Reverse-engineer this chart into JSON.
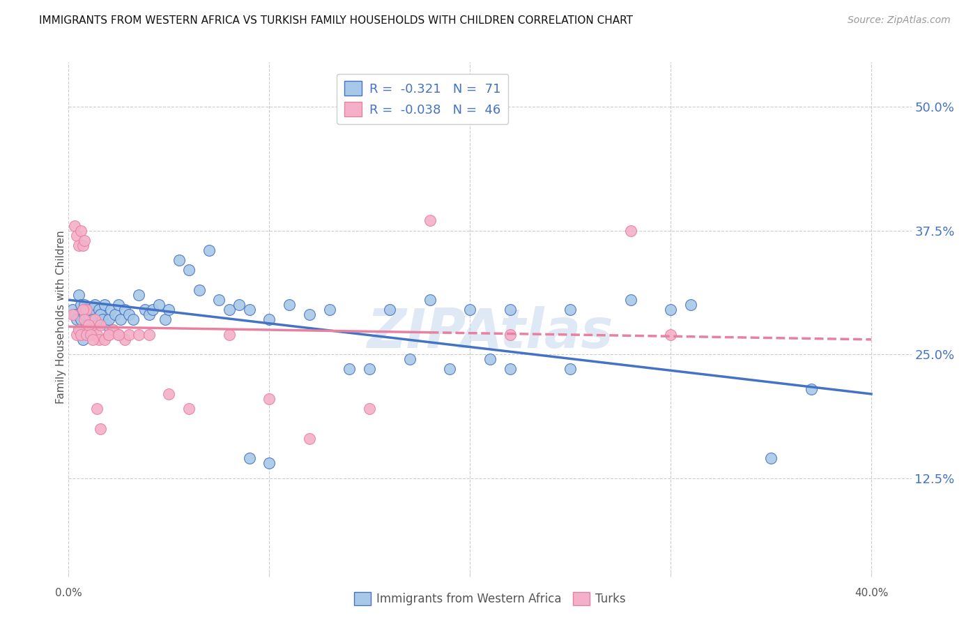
{
  "title": "IMMIGRANTS FROM WESTERN AFRICA VS TURKISH FAMILY HOUSEHOLDS WITH CHILDREN CORRELATION CHART",
  "source": "Source: ZipAtlas.com",
  "ylabel": "Family Households with Children",
  "yticks": [
    0.125,
    0.25,
    0.375,
    0.5
  ],
  "ytick_labels": [
    "12.5%",
    "25.0%",
    "37.5%",
    "50.0%"
  ],
  "xticks": [
    0.0,
    0.1,
    0.2,
    0.3,
    0.4
  ],
  "xlim": [
    0.0,
    0.42
  ],
  "ylim": [
    0.03,
    0.545
  ],
  "legend_label1": "R =  -0.321   N =  71",
  "legend_label2": "R =  -0.038   N =  46",
  "legend_bottom_label1": "Immigrants from Western Africa",
  "legend_bottom_label2": "Turks",
  "color_blue": "#a8c8e8",
  "color_pink": "#f4b0c8",
  "line_blue": "#4472c4",
  "line_pink": "#e880a0",
  "text_color_blue": "#4472c4",
  "text_color_dark": "#555555",
  "watermark": "ZIPAtlas",
  "blue_scatter_x": [
    0.002,
    0.003,
    0.004,
    0.005,
    0.005,
    0.006,
    0.006,
    0.007,
    0.007,
    0.008,
    0.008,
    0.009,
    0.009,
    0.01,
    0.01,
    0.011,
    0.012,
    0.013,
    0.014,
    0.015,
    0.016,
    0.017,
    0.018,
    0.019,
    0.02,
    0.021,
    0.022,
    0.023,
    0.025,
    0.026,
    0.028,
    0.03,
    0.032,
    0.035,
    0.038,
    0.04,
    0.042,
    0.045,
    0.048,
    0.05,
    0.055,
    0.06,
    0.065,
    0.07,
    0.075,
    0.08,
    0.085,
    0.09,
    0.1,
    0.11,
    0.12,
    0.13,
    0.14,
    0.15,
    0.16,
    0.18,
    0.2,
    0.22,
    0.25,
    0.28,
    0.22,
    0.25,
    0.09,
    0.1,
    0.3,
    0.31,
    0.35,
    0.17,
    0.19,
    0.21,
    0.37
  ],
  "blue_scatter_y": [
    0.295,
    0.29,
    0.285,
    0.31,
    0.275,
    0.3,
    0.285,
    0.295,
    0.265,
    0.29,
    0.3,
    0.28,
    0.295,
    0.275,
    0.29,
    0.295,
    0.285,
    0.3,
    0.28,
    0.295,
    0.29,
    0.285,
    0.3,
    0.28,
    0.285,
    0.295,
    0.275,
    0.29,
    0.3,
    0.285,
    0.295,
    0.29,
    0.285,
    0.31,
    0.295,
    0.29,
    0.295,
    0.3,
    0.285,
    0.295,
    0.345,
    0.335,
    0.315,
    0.355,
    0.305,
    0.295,
    0.3,
    0.295,
    0.285,
    0.3,
    0.29,
    0.295,
    0.235,
    0.235,
    0.295,
    0.305,
    0.295,
    0.295,
    0.295,
    0.305,
    0.235,
    0.235,
    0.145,
    0.14,
    0.295,
    0.3,
    0.145,
    0.245,
    0.235,
    0.245,
    0.215
  ],
  "pink_scatter_x": [
    0.002,
    0.003,
    0.004,
    0.005,
    0.006,
    0.007,
    0.008,
    0.009,
    0.01,
    0.011,
    0.012,
    0.013,
    0.014,
    0.015,
    0.016,
    0.018,
    0.02,
    0.022,
    0.025,
    0.028,
    0.03,
    0.035,
    0.04,
    0.05,
    0.06,
    0.08,
    0.1,
    0.12,
    0.15,
    0.18,
    0.22,
    0.28,
    0.3,
    0.004,
    0.005,
    0.006,
    0.007,
    0.008,
    0.009,
    0.01,
    0.011,
    0.012,
    0.014,
    0.016,
    0.02,
    0.025
  ],
  "pink_scatter_y": [
    0.29,
    0.38,
    0.37,
    0.36,
    0.375,
    0.36,
    0.365,
    0.295,
    0.275,
    0.27,
    0.275,
    0.285,
    0.27,
    0.265,
    0.28,
    0.265,
    0.27,
    0.275,
    0.27,
    0.265,
    0.27,
    0.27,
    0.27,
    0.21,
    0.195,
    0.27,
    0.205,
    0.165,
    0.195,
    0.385,
    0.27,
    0.375,
    0.27,
    0.27,
    0.275,
    0.27,
    0.295,
    0.285,
    0.27,
    0.28,
    0.27,
    0.265,
    0.195,
    0.175,
    0.27,
    0.27
  ],
  "blue_line_x": [
    0.0,
    0.4
  ],
  "blue_line_y": [
    0.305,
    0.21
  ],
  "pink_line_x": [
    0.0,
    0.4
  ],
  "pink_line_y": [
    0.278,
    0.265
  ],
  "pink_line_solid_end": 0.18,
  "bg_color": "#ffffff",
  "grid_color": "#cccccc",
  "scatter_size": 130
}
